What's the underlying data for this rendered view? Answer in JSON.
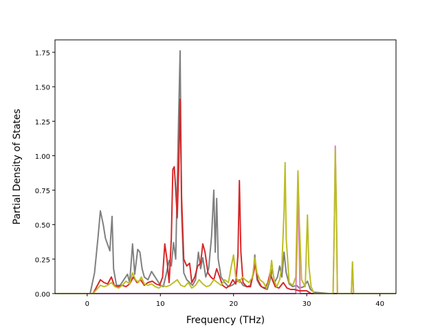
{
  "chart_data": {
    "type": "line",
    "title": "",
    "xlabel": "Frequency (THz)",
    "ylabel": "Partial Density of States",
    "xlim": [
      -4.4,
      42.2
    ],
    "ylim": [
      0,
      1.84
    ],
    "xticks": [
      "0",
      "10",
      "20",
      "30",
      "40"
    ],
    "xtick_values": [
      0,
      10,
      20,
      30,
      40
    ],
    "yticks": [
      "0.00",
      "0.25",
      "0.50",
      "0.75",
      "1.00",
      "1.25",
      "1.50",
      "1.75"
    ],
    "ytick_values": [
      0,
      0.25,
      0.5,
      0.75,
      1.0,
      1.25,
      1.5,
      1.75
    ],
    "grid": false,
    "legend": "none",
    "series": [
      {
        "color": "#7f7f7f",
        "points": [
          [
            -4.4,
            0
          ],
          [
            0.4,
            0
          ],
          [
            1.0,
            0.15
          ],
          [
            1.5,
            0.42
          ],
          [
            1.8,
            0.6
          ],
          [
            2.2,
            0.5
          ],
          [
            2.5,
            0.4
          ],
          [
            2.9,
            0.34
          ],
          [
            3.1,
            0.31
          ],
          [
            3.4,
            0.56
          ],
          [
            3.6,
            0.18
          ],
          [
            4.0,
            0.06
          ],
          [
            4.5,
            0.06
          ],
          [
            5.0,
            0.1
          ],
          [
            5.5,
            0.14
          ],
          [
            5.8,
            0.08
          ],
          [
            6.2,
            0.36
          ],
          [
            6.5,
            0.14
          ],
          [
            6.9,
            0.32
          ],
          [
            7.2,
            0.3
          ],
          [
            7.5,
            0.18
          ],
          [
            7.8,
            0.12
          ],
          [
            8.3,
            0.1
          ],
          [
            8.8,
            0.16
          ],
          [
            9.4,
            0.11
          ],
          [
            10.0,
            0.06
          ],
          [
            10.4,
            0.05
          ],
          [
            10.8,
            0.14
          ],
          [
            11.2,
            0.24
          ],
          [
            11.5,
            0.2
          ],
          [
            11.8,
            0.37
          ],
          [
            12.1,
            0.25
          ],
          [
            12.3,
            0.8
          ],
          [
            12.5,
            1.3
          ],
          [
            12.7,
            1.76
          ],
          [
            12.9,
            0.6
          ],
          [
            13.2,
            0.15
          ],
          [
            13.6,
            0.1
          ],
          [
            14.0,
            0.08
          ],
          [
            14.4,
            0.06
          ],
          [
            14.8,
            0.1
          ],
          [
            15.2,
            0.3
          ],
          [
            15.5,
            0.18
          ],
          [
            15.8,
            0.26
          ],
          [
            16.2,
            0.12
          ],
          [
            16.6,
            0.18
          ],
          [
            17.0,
            0.42
          ],
          [
            17.3,
            0.75
          ],
          [
            17.5,
            0.3
          ],
          [
            17.7,
            0.69
          ],
          [
            17.9,
            0.25
          ],
          [
            18.3,
            0.12
          ],
          [
            18.8,
            0.08
          ],
          [
            19.3,
            0.05
          ],
          [
            19.8,
            0.06
          ],
          [
            20.3,
            0.08
          ],
          [
            20.8,
            0.1
          ],
          [
            21.3,
            0.06
          ],
          [
            21.8,
            0.05
          ],
          [
            22.3,
            0.06
          ],
          [
            22.7,
            0.15
          ],
          [
            22.9,
            0.28
          ],
          [
            23.2,
            0.1
          ],
          [
            23.6,
            0.06
          ],
          [
            24.1,
            0.04
          ],
          [
            24.6,
            0.03
          ],
          [
            25.0,
            0.1
          ],
          [
            25.3,
            0.18
          ],
          [
            25.6,
            0.08
          ],
          [
            26.0,
            0.12
          ],
          [
            26.3,
            0.2
          ],
          [
            26.6,
            0.12
          ],
          [
            26.9,
            0.3
          ],
          [
            27.2,
            0.15
          ],
          [
            27.6,
            0.07
          ],
          [
            28.1,
            0.05
          ],
          [
            28.6,
            0.06
          ],
          [
            29.0,
            0.04
          ],
          [
            29.6,
            0.05
          ],
          [
            30.1,
            0.09
          ],
          [
            30.5,
            0.03
          ],
          [
            31.0,
            0.01
          ],
          [
            33.0,
            0
          ],
          [
            42.2,
            0
          ]
        ]
      },
      {
        "color": "#e377c2",
        "points": [
          [
            -4.4,
            0
          ],
          [
            28.5,
            0
          ],
          [
            28.7,
            0.4
          ],
          [
            28.8,
            0.88
          ],
          [
            28.95,
            0.4
          ],
          [
            29.1,
            0
          ],
          [
            33.6,
            0
          ],
          [
            33.8,
            0.6
          ],
          [
            33.9,
            1.07
          ],
          [
            34.05,
            0.6
          ],
          [
            34.2,
            0
          ],
          [
            36.1,
            0
          ],
          [
            36.25,
            0.22
          ],
          [
            36.4,
            0
          ],
          [
            42.2,
            0
          ]
        ]
      },
      {
        "color": "#d62728",
        "points": [
          [
            -4.4,
            0
          ],
          [
            0.8,
            0
          ],
          [
            1.3,
            0.05
          ],
          [
            1.8,
            0.1
          ],
          [
            2.3,
            0.08
          ],
          [
            2.8,
            0.07
          ],
          [
            3.3,
            0.12
          ],
          [
            3.7,
            0.06
          ],
          [
            4.2,
            0.05
          ],
          [
            4.8,
            0.06
          ],
          [
            5.3,
            0.05
          ],
          [
            5.8,
            0.07
          ],
          [
            6.3,
            0.12
          ],
          [
            6.8,
            0.08
          ],
          [
            7.3,
            0.1
          ],
          [
            7.8,
            0.06
          ],
          [
            8.3,
            0.08
          ],
          [
            8.9,
            0.09
          ],
          [
            9.4,
            0.07
          ],
          [
            9.9,
            0.06
          ],
          [
            10.3,
            0.12
          ],
          [
            10.6,
            0.36
          ],
          [
            10.9,
            0.25
          ],
          [
            11.2,
            0.08
          ],
          [
            11.5,
            0.4
          ],
          [
            11.7,
            0.9
          ],
          [
            11.9,
            0.92
          ],
          [
            12.1,
            0.75
          ],
          [
            12.3,
            0.55
          ],
          [
            12.5,
            0.9
          ],
          [
            12.7,
            1.41
          ],
          [
            12.9,
            0.7
          ],
          [
            13.2,
            0.25
          ],
          [
            13.6,
            0.2
          ],
          [
            14.0,
            0.22
          ],
          [
            14.3,
            0.08
          ],
          [
            14.7,
            0.12
          ],
          [
            15.1,
            0.2
          ],
          [
            15.5,
            0.22
          ],
          [
            15.8,
            0.36
          ],
          [
            16.1,
            0.3
          ],
          [
            16.5,
            0.15
          ],
          [
            16.9,
            0.12
          ],
          [
            17.3,
            0.1
          ],
          [
            17.7,
            0.18
          ],
          [
            18.1,
            0.12
          ],
          [
            18.5,
            0.06
          ],
          [
            19.0,
            0.04
          ],
          [
            19.5,
            0.06
          ],
          [
            19.9,
            0.1
          ],
          [
            20.3,
            0.07
          ],
          [
            20.6,
            0.28
          ],
          [
            20.8,
            0.82
          ],
          [
            21.0,
            0.3
          ],
          [
            21.3,
            0.08
          ],
          [
            21.8,
            0.05
          ],
          [
            22.3,
            0.05
          ],
          [
            22.7,
            0.14
          ],
          [
            23.0,
            0.22
          ],
          [
            23.3,
            0.1
          ],
          [
            23.8,
            0.05
          ],
          [
            24.3,
            0.04
          ],
          [
            24.7,
            0.08
          ],
          [
            25.0,
            0.15
          ],
          [
            25.3,
            0.1
          ],
          [
            25.7,
            0.05
          ],
          [
            26.2,
            0.04
          ],
          [
            26.8,
            0.08
          ],
          [
            27.3,
            0.04
          ],
          [
            27.8,
            0.03
          ],
          [
            28.3,
            0.03
          ],
          [
            29.0,
            0.02
          ],
          [
            30.0,
            0.02
          ],
          [
            30.6,
            0
          ],
          [
            42.2,
            0
          ]
        ]
      },
      {
        "color": "#bcbd22",
        "points": [
          [
            -4.4,
            0
          ],
          [
            0.8,
            0
          ],
          [
            1.3,
            0.03
          ],
          [
            1.8,
            0.06
          ],
          [
            2.3,
            0.05
          ],
          [
            2.8,
            0.06
          ],
          [
            3.3,
            0.08
          ],
          [
            3.8,
            0.05
          ],
          [
            4.3,
            0.04
          ],
          [
            4.8,
            0.06
          ],
          [
            5.3,
            0.09
          ],
          [
            5.8,
            0.07
          ],
          [
            6.2,
            0.15
          ],
          [
            6.6,
            0.1
          ],
          [
            7.0,
            0.08
          ],
          [
            7.4,
            0.12
          ],
          [
            7.8,
            0.07
          ],
          [
            8.3,
            0.06
          ],
          [
            8.8,
            0.07
          ],
          [
            9.3,
            0.05
          ],
          [
            9.8,
            0.04
          ],
          [
            10.3,
            0.06
          ],
          [
            10.8,
            0.05
          ],
          [
            11.3,
            0.06
          ],
          [
            11.8,
            0.08
          ],
          [
            12.3,
            0.1
          ],
          [
            12.8,
            0.06
          ],
          [
            13.3,
            0.05
          ],
          [
            13.8,
            0.08
          ],
          [
            14.3,
            0.04
          ],
          [
            14.8,
            0.06
          ],
          [
            15.3,
            0.1
          ],
          [
            15.8,
            0.07
          ],
          [
            16.3,
            0.05
          ],
          [
            16.8,
            0.06
          ],
          [
            17.3,
            0.1
          ],
          [
            17.8,
            0.08
          ],
          [
            18.3,
            0.06
          ],
          [
            18.8,
            0.1
          ],
          [
            19.3,
            0.08
          ],
          [
            19.7,
            0.2
          ],
          [
            20.0,
            0.28
          ],
          [
            20.3,
            0.12
          ],
          [
            20.8,
            0.08
          ],
          [
            21.2,
            0.12
          ],
          [
            21.6,
            0.1
          ],
          [
            22.1,
            0.08
          ],
          [
            22.6,
            0.12
          ],
          [
            22.9,
            0.26
          ],
          [
            23.2,
            0.15
          ],
          [
            23.6,
            0.1
          ],
          [
            24.1,
            0.08
          ],
          [
            24.5,
            0.04
          ],
          [
            24.9,
            0.1
          ],
          [
            25.2,
            0.24
          ],
          [
            25.5,
            0.1
          ],
          [
            25.9,
            0.05
          ],
          [
            26.3,
            0.1
          ],
          [
            26.6,
            0.2
          ],
          [
            26.9,
            0.6
          ],
          [
            27.05,
            0.95
          ],
          [
            27.2,
            0.4
          ],
          [
            27.6,
            0.08
          ],
          [
            28.1,
            0.06
          ],
          [
            28.5,
            0.12
          ],
          [
            28.8,
            0.89
          ],
          [
            29.0,
            0.5
          ],
          [
            29.3,
            0.1
          ],
          [
            29.8,
            0.05
          ],
          [
            30.1,
            0.57
          ],
          [
            30.3,
            0.2
          ],
          [
            30.6,
            0.05
          ],
          [
            31.0,
            0
          ],
          [
            33.6,
            0
          ],
          [
            33.8,
            0.6
          ],
          [
            33.9,
            1.04
          ],
          [
            34.05,
            0.6
          ],
          [
            34.2,
            0
          ],
          [
            36.1,
            0
          ],
          [
            36.25,
            0.23
          ],
          [
            36.4,
            0
          ],
          [
            42.2,
            0
          ]
        ]
      }
    ]
  }
}
